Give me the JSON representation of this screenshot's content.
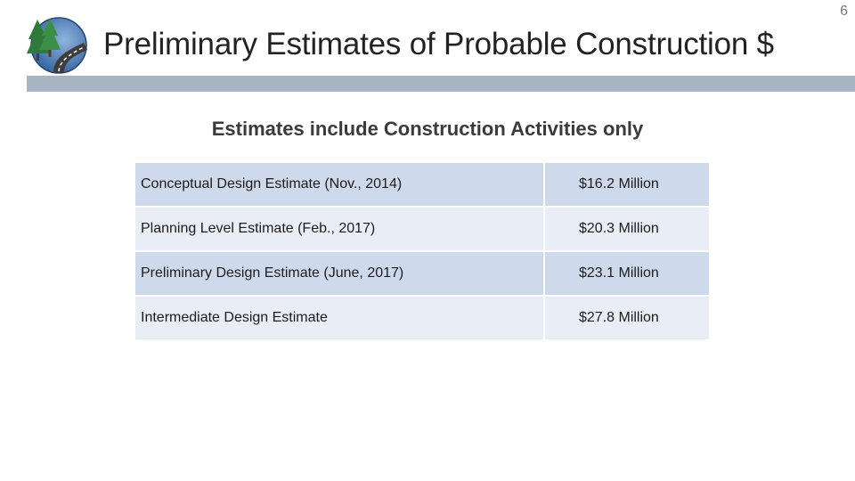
{
  "header": {
    "title": "Preliminary Estimates of Probable Construction $",
    "page_number": "6",
    "logo_icon": "trees-road-globe-logo-icon"
  },
  "subtitle": "Estimates include Construction Activities only",
  "estimates": [
    {
      "label": "Conceptual Design Estimate (Nov., 2014)",
      "value": "$16.2 Million"
    },
    {
      "label": "Planning Level Estimate (Feb., 2017)",
      "value": "$20.3 Million"
    },
    {
      "label": "Preliminary Design Estimate (June, 2017)",
      "value": "$23.1 Million"
    },
    {
      "label": "Intermediate Design Estimate",
      "value": "$27.8 Million"
    }
  ],
  "colors": {
    "header_rule": "#a9b4c2",
    "row_dark": "#cfd9ec",
    "row_light": "#e8edf6"
  }
}
